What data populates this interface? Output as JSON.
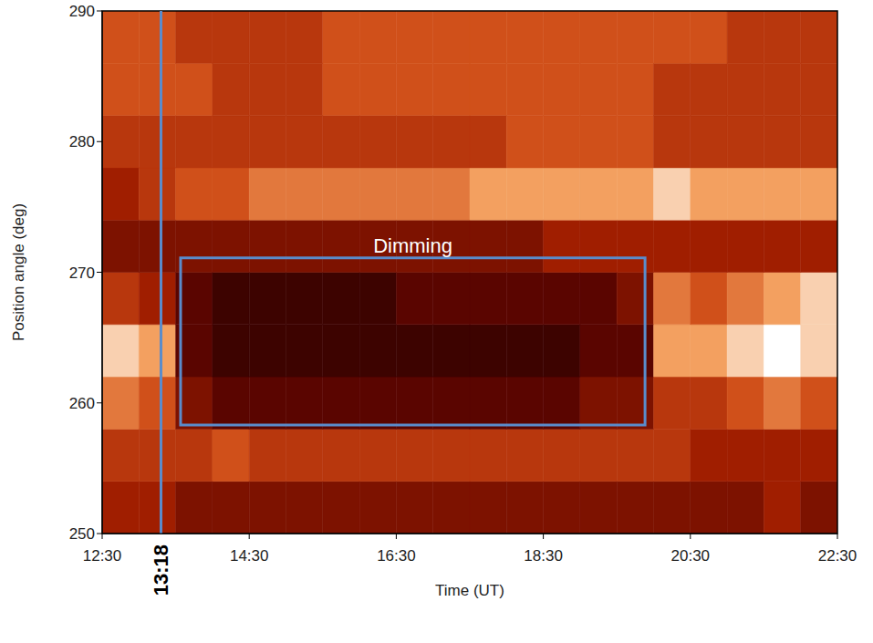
{
  "chart_data": {
    "type": "heatmap",
    "xlabel": "Time (UT)",
    "ylabel": "Position angle (deg)",
    "xlim": [
      750,
      1350
    ],
    "xticks": [
      {
        "value": 750,
        "label": "12:30"
      },
      {
        "value": 870,
        "label": "14:30"
      },
      {
        "value": 990,
        "label": "16:30"
      },
      {
        "value": 1110,
        "label": "18:30"
      },
      {
        "value": 1230,
        "label": "20:30"
      },
      {
        "value": 1350,
        "label": "22:30"
      }
    ],
    "ylim": [
      250,
      290
    ],
    "yticks": [
      250,
      260,
      270,
      280,
      290
    ],
    "x_bins": [
      750,
      780,
      810,
      840,
      870,
      900,
      930,
      960,
      990,
      1020,
      1050,
      1080,
      1110,
      1140,
      1170,
      1200,
      1230,
      1260,
      1290,
      1320,
      1350
    ],
    "y_bins": [
      250,
      254,
      258,
      262,
      266,
      270,
      274,
      278,
      282,
      286,
      290
    ],
    "cells": [
      [
        4,
        4,
        3,
        3,
        3,
        3,
        3,
        3,
        3,
        3,
        3,
        3,
        3,
        3,
        3,
        3,
        3,
        3,
        4,
        3
      ],
      [
        5,
        5,
        5,
        6,
        5,
        5,
        5,
        5,
        5,
        5,
        5,
        5,
        5,
        5,
        5,
        5,
        4,
        4,
        4,
        4
      ],
      [
        7,
        6,
        3,
        2,
        2,
        2,
        2,
        2,
        2,
        2,
        2,
        2,
        2,
        3,
        3,
        5,
        5,
        6,
        7,
        6
      ],
      [
        9,
        8,
        2,
        1,
        1,
        1,
        1,
        1,
        1,
        1,
        1,
        1,
        1,
        2,
        2,
        8,
        8,
        9,
        10,
        9
      ],
      [
        5,
        4,
        2,
        1,
        1,
        1,
        1,
        1,
        2,
        2,
        2,
        2,
        2,
        2,
        3,
        7,
        6,
        7,
        8,
        9
      ],
      [
        3,
        3,
        3,
        3,
        3,
        3,
        3,
        3,
        3,
        3,
        3,
        3,
        4,
        4,
        4,
        4,
        4,
        4,
        4,
        4
      ],
      [
        4,
        5,
        6,
        6,
        7,
        7,
        7,
        7,
        7,
        7,
        8,
        8,
        8,
        8,
        8,
        9,
        8,
        8,
        8,
        8
      ],
      [
        5,
        5,
        5,
        5,
        5,
        5,
        5,
        5,
        5,
        5,
        5,
        6,
        6,
        6,
        6,
        5,
        5,
        5,
        5,
        5
      ],
      [
        6,
        6,
        6,
        5,
        5,
        5,
        6,
        6,
        6,
        6,
        6,
        6,
        6,
        6,
        6,
        5,
        5,
        5,
        5,
        5
      ],
      [
        6,
        6,
        5,
        5,
        5,
        5,
        6,
        6,
        6,
        6,
        6,
        6,
        6,
        6,
        6,
        6,
        6,
        5,
        5,
        5
      ]
    ],
    "annotations": [
      {
        "text": "Dimming",
        "x1": 814,
        "x2": 1193,
        "y1": 258.3,
        "y2": 271.1
      },
      {
        "text": "13:18",
        "x": 798
      }
    ]
  }
}
